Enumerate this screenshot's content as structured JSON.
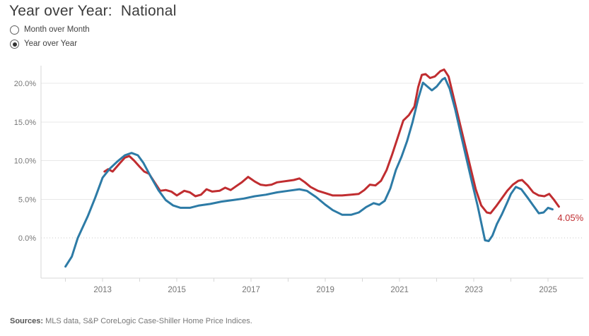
{
  "header": {
    "title": "Year over Year:  National"
  },
  "controls": {
    "radio_group": [
      {
        "label": "Month over Month",
        "selected": false
      },
      {
        "label": "Year over Year",
        "selected": true
      }
    ]
  },
  "chart_data": {
    "type": "line",
    "title": "Year over Year: National",
    "xlabel": "",
    "ylabel": "",
    "grid": true,
    "legend": "none",
    "x_range": [
      2011.34,
      2025.95
    ],
    "y_range": [
      -5.2,
      22.3
    ],
    "y_ticks": [
      {
        "value": 0,
        "label": "0.0%",
        "dotted": true
      },
      {
        "value": 5,
        "label": "5.0%",
        "dotted": false
      },
      {
        "value": 10,
        "label": "10.0%",
        "dotted": false
      },
      {
        "value": 15,
        "label": "15.0%",
        "dotted": false
      },
      {
        "value": 20,
        "label": "20.0%",
        "dotted": false
      }
    ],
    "x_minor_ticks": [
      2012,
      2013,
      2014,
      2015,
      2016,
      2017,
      2018,
      2019,
      2020,
      2021,
      2022,
      2023,
      2024,
      2025
    ],
    "x_tick_labels": [
      {
        "value": 2013,
        "label": "2013"
      },
      {
        "value": 2015,
        "label": "2015"
      },
      {
        "value": 2017,
        "label": "2017"
      },
      {
        "value": 2019,
        "label": "2019"
      },
      {
        "value": 2021,
        "label": "2021"
      },
      {
        "value": 2023,
        "label": "2023"
      },
      {
        "value": 2025,
        "label": "2025"
      }
    ],
    "colors": {
      "red": "#c02d30",
      "blue": "#2d7ba6",
      "grid": "#e8e8e8",
      "axis": "#d7d7d7",
      "tick_text": "#767676"
    },
    "series": [
      {
        "name": "MLS data (red)",
        "color": "#c02d30",
        "points": [
          [
            2013.05,
            8.6
          ],
          [
            2013.15,
            8.9
          ],
          [
            2013.27,
            8.6
          ],
          [
            2013.45,
            9.6
          ],
          [
            2013.6,
            10.4
          ],
          [
            2013.72,
            10.6
          ],
          [
            2013.85,
            10.0
          ],
          [
            2014.0,
            9.2
          ],
          [
            2014.12,
            8.6
          ],
          [
            2014.25,
            8.3
          ],
          [
            2014.4,
            7.2
          ],
          [
            2014.55,
            6.1
          ],
          [
            2014.7,
            6.2
          ],
          [
            2014.85,
            6.0
          ],
          [
            2015.0,
            5.5
          ],
          [
            2015.2,
            6.1
          ],
          [
            2015.35,
            5.9
          ],
          [
            2015.5,
            5.4
          ],
          [
            2015.65,
            5.6
          ],
          [
            2015.8,
            6.3
          ],
          [
            2015.95,
            6.0
          ],
          [
            2016.15,
            6.1
          ],
          [
            2016.3,
            6.5
          ],
          [
            2016.45,
            6.2
          ],
          [
            2016.6,
            6.7
          ],
          [
            2016.75,
            7.2
          ],
          [
            2016.92,
            7.9
          ],
          [
            2017.1,
            7.3
          ],
          [
            2017.25,
            6.9
          ],
          [
            2017.4,
            6.8
          ],
          [
            2017.55,
            6.9
          ],
          [
            2017.7,
            7.2
          ],
          [
            2017.85,
            7.3
          ],
          [
            2018.0,
            7.4
          ],
          [
            2018.15,
            7.5
          ],
          [
            2018.3,
            7.7
          ],
          [
            2018.45,
            7.2
          ],
          [
            2018.6,
            6.6
          ],
          [
            2018.8,
            6.1
          ],
          [
            2019.0,
            5.8
          ],
          [
            2019.2,
            5.5
          ],
          [
            2019.45,
            5.5
          ],
          [
            2019.7,
            5.6
          ],
          [
            2019.9,
            5.7
          ],
          [
            2020.05,
            6.2
          ],
          [
            2020.2,
            6.9
          ],
          [
            2020.35,
            6.8
          ],
          [
            2020.5,
            7.4
          ],
          [
            2020.65,
            8.8
          ],
          [
            2020.8,
            10.8
          ],
          [
            2020.95,
            13.0
          ],
          [
            2021.1,
            15.2
          ],
          [
            2021.25,
            15.9
          ],
          [
            2021.4,
            17.0
          ],
          [
            2021.5,
            19.5
          ],
          [
            2021.6,
            21.1
          ],
          [
            2021.7,
            21.2
          ],
          [
            2021.82,
            20.7
          ],
          [
            2021.95,
            20.9
          ],
          [
            2022.1,
            21.6
          ],
          [
            2022.2,
            21.8
          ],
          [
            2022.32,
            20.9
          ],
          [
            2022.45,
            18.3
          ],
          [
            2022.6,
            15.3
          ],
          [
            2022.75,
            12.3
          ],
          [
            2022.9,
            9.3
          ],
          [
            2023.05,
            6.3
          ],
          [
            2023.2,
            4.2
          ],
          [
            2023.35,
            3.3
          ],
          [
            2023.45,
            3.2
          ],
          [
            2023.6,
            4.1
          ],
          [
            2023.75,
            5.1
          ],
          [
            2023.9,
            6.1
          ],
          [
            2024.05,
            6.9
          ],
          [
            2024.2,
            7.4
          ],
          [
            2024.3,
            7.5
          ],
          [
            2024.45,
            6.8
          ],
          [
            2024.6,
            5.9
          ],
          [
            2024.75,
            5.5
          ],
          [
            2024.9,
            5.4
          ],
          [
            2025.03,
            5.7
          ],
          [
            2025.15,
            5.0
          ],
          [
            2025.29,
            4.05
          ]
        ]
      },
      {
        "name": "S&P CoreLogic Case-Shiller (blue)",
        "color": "#2d7ba6",
        "points": [
          [
            2012.0,
            -3.7
          ],
          [
            2012.17,
            -2.4
          ],
          [
            2012.33,
            0.0
          ],
          [
            2012.6,
            2.8
          ],
          [
            2012.8,
            5.2
          ],
          [
            2013.0,
            7.8
          ],
          [
            2013.2,
            9.0
          ],
          [
            2013.4,
            9.9
          ],
          [
            2013.6,
            10.7
          ],
          [
            2013.78,
            11.0
          ],
          [
            2013.95,
            10.7
          ],
          [
            2014.1,
            9.7
          ],
          [
            2014.3,
            7.9
          ],
          [
            2014.5,
            6.2
          ],
          [
            2014.7,
            4.9
          ],
          [
            2014.9,
            4.2
          ],
          [
            2015.1,
            3.9
          ],
          [
            2015.35,
            3.9
          ],
          [
            2015.6,
            4.2
          ],
          [
            2015.9,
            4.4
          ],
          [
            2016.2,
            4.7
          ],
          [
            2016.5,
            4.9
          ],
          [
            2016.8,
            5.1
          ],
          [
            2017.1,
            5.4
          ],
          [
            2017.4,
            5.6
          ],
          [
            2017.7,
            5.9
          ],
          [
            2018.0,
            6.1
          ],
          [
            2018.3,
            6.3
          ],
          [
            2018.5,
            6.1
          ],
          [
            2018.75,
            5.3
          ],
          [
            2019.0,
            4.3
          ],
          [
            2019.2,
            3.6
          ],
          [
            2019.45,
            3.0
          ],
          [
            2019.7,
            3.0
          ],
          [
            2019.9,
            3.3
          ],
          [
            2020.1,
            4.0
          ],
          [
            2020.3,
            4.5
          ],
          [
            2020.45,
            4.3
          ],
          [
            2020.6,
            4.8
          ],
          [
            2020.75,
            6.4
          ],
          [
            2020.9,
            8.8
          ],
          [
            2021.05,
            10.5
          ],
          [
            2021.2,
            12.5
          ],
          [
            2021.35,
            15.0
          ],
          [
            2021.5,
            18.0
          ],
          [
            2021.63,
            20.1
          ],
          [
            2021.75,
            19.6
          ],
          [
            2021.87,
            19.1
          ],
          [
            2022.0,
            19.6
          ],
          [
            2022.15,
            20.5
          ],
          [
            2022.22,
            20.7
          ],
          [
            2022.35,
            19.3
          ],
          [
            2022.5,
            16.6
          ],
          [
            2022.65,
            13.4
          ],
          [
            2022.8,
            10.3
          ],
          [
            2022.95,
            7.2
          ],
          [
            2023.1,
            4.2
          ],
          [
            2023.22,
            1.5
          ],
          [
            2023.3,
            -0.3
          ],
          [
            2023.4,
            -0.4
          ],
          [
            2023.5,
            0.3
          ],
          [
            2023.62,
            1.8
          ],
          [
            2023.75,
            3.0
          ],
          [
            2023.9,
            4.6
          ],
          [
            2024.0,
            5.7
          ],
          [
            2024.13,
            6.6
          ],
          [
            2024.28,
            6.3
          ],
          [
            2024.45,
            5.2
          ],
          [
            2024.6,
            4.2
          ],
          [
            2024.75,
            3.2
          ],
          [
            2024.88,
            3.3
          ],
          [
            2025.0,
            3.9
          ],
          [
            2025.12,
            3.7
          ]
        ]
      }
    ],
    "annotation": {
      "text": "4.05%",
      "color": "#c02d30"
    }
  },
  "footer": {
    "source_label": "Sources:",
    "source_text": " MLS data, S&P CoreLogic Case-Shiller Home Price Indices."
  }
}
